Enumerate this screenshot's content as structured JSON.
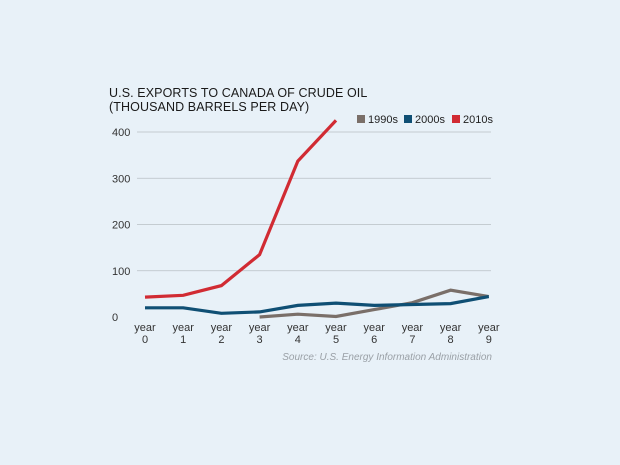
{
  "chart_data": {
    "type": "line",
    "title_lines": [
      "U.S. EXPORTS TO CANADA OF CRUDE OIL",
      "(THOUSAND BARRELS PER DAY)"
    ],
    "categories": [
      "year 0",
      "year 1",
      "year 2",
      "year 3",
      "year 4",
      "year 5",
      "year 6",
      "year 7",
      "year 8",
      "year 9"
    ],
    "ylim": [
      0,
      400
    ],
    "yticks": [
      0,
      100,
      200,
      300,
      400
    ],
    "grid": true,
    "legend_position": "top-right",
    "series": [
      {
        "name": "1990s",
        "color": "#7a6f69",
        "values": [
          null,
          null,
          null,
          0,
          6,
          1,
          16,
          31,
          58,
          44
        ]
      },
      {
        "name": "2000s",
        "color": "#0f4f74",
        "values": [
          20,
          20,
          8,
          11,
          25,
          30,
          25,
          27,
          29,
          44
        ]
      },
      {
        "name": "2010s",
        "color": "#d12b33",
        "values": [
          43,
          47,
          68,
          135,
          337,
          425,
          null,
          null,
          null,
          null
        ]
      }
    ],
    "source": "Source: U.S. Energy Information Administration"
  }
}
